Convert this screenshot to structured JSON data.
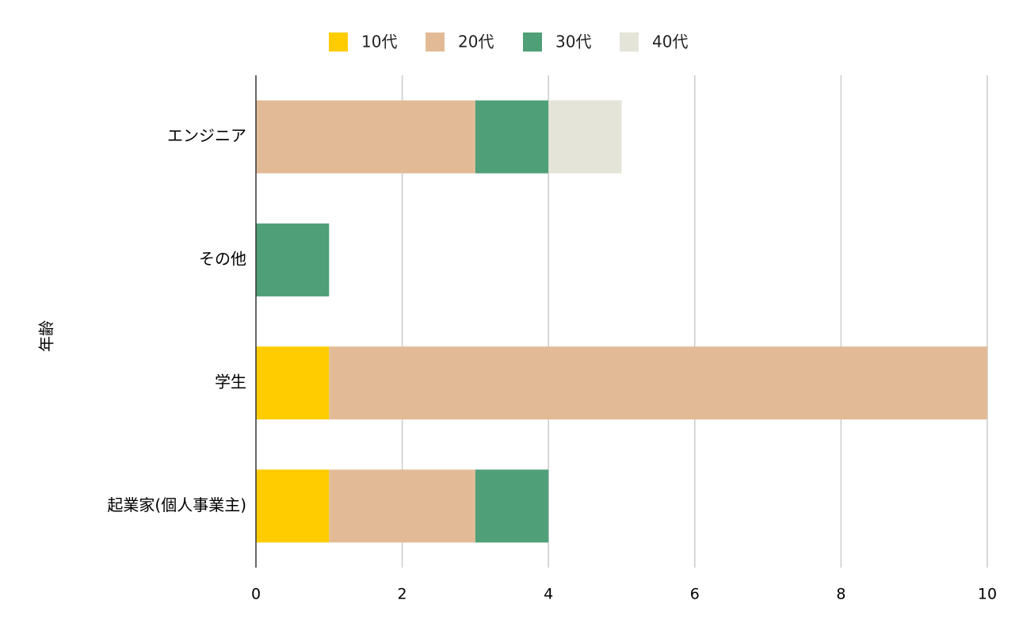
{
  "chart_data": {
    "type": "bar",
    "orientation": "horizontal",
    "stacked": true,
    "categories": [
      "エンジニア",
      "その他",
      "学生",
      "起業家(個人事業主)"
    ],
    "series": [
      {
        "name": "10代",
        "color": "#FFCC00",
        "values": [
          0,
          0,
          1,
          1
        ]
      },
      {
        "name": "20代",
        "color": "#E2BB96",
        "values": [
          3,
          0,
          9,
          2
        ]
      },
      {
        "name": "30代",
        "color": "#4F9F78",
        "values": [
          1,
          1,
          0,
          1
        ]
      },
      {
        "name": "40代",
        "color": "#E4E4D8",
        "values": [
          1,
          0,
          0,
          0
        ]
      }
    ],
    "xlim": [
      0,
      10
    ],
    "xticks": [
      "0",
      "2",
      "4",
      "6",
      "8",
      "10"
    ],
    "ylabel": "年齢",
    "legend_position": "top",
    "grid": true
  }
}
